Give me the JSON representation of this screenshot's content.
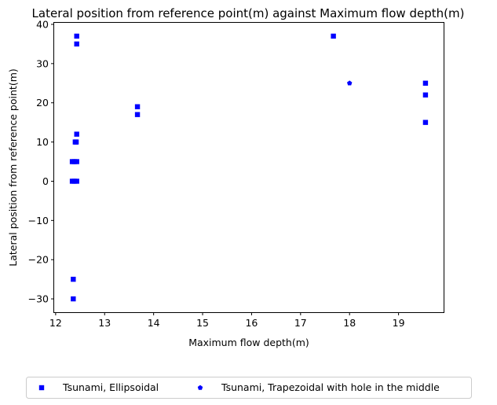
{
  "chart_data": {
    "type": "scatter",
    "title": "Lateral position from reference point(m) against Maximum flow depth(m)",
    "xlabel": "Maximum flow depth(m)",
    "ylabel": "Lateral position from reference point(m)",
    "xlim": [
      11.97,
      19.92
    ],
    "ylim": [
      -33.4,
      40.4
    ],
    "xticks": [
      12,
      13,
      14,
      15,
      16,
      17,
      18,
      19
    ],
    "yticks": [
      -30,
      -20,
      -10,
      0,
      10,
      20,
      30,
      40
    ],
    "xtick_labels": [
      "12",
      "13",
      "14",
      "15",
      "16",
      "17",
      "18",
      "19"
    ],
    "ytick_labels": [
      "−30",
      "−20",
      "−10",
      "0",
      "10",
      "20",
      "30",
      "40"
    ],
    "legend_position": "below",
    "series": [
      {
        "name": "Tsunami, Ellipsoidal",
        "marker": "square",
        "color": "#0000ff",
        "points": [
          [
            12.43,
            37
          ],
          [
            12.43,
            35
          ],
          [
            12.43,
            12
          ],
          [
            12.42,
            10
          ],
          [
            12.4,
            10
          ],
          [
            12.34,
            5
          ],
          [
            12.38,
            5
          ],
          [
            12.43,
            5
          ],
          [
            12.34,
            0
          ],
          [
            12.38,
            0
          ],
          [
            12.43,
            0
          ],
          [
            12.36,
            -25
          ],
          [
            12.36,
            -30
          ],
          [
            13.67,
            19
          ],
          [
            13.67,
            17
          ],
          [
            17.67,
            37
          ],
          [
            19.55,
            25
          ],
          [
            19.55,
            22
          ],
          [
            19.55,
            15
          ]
        ]
      },
      {
        "name": "Tsunami, Trapezoidal with hole in the middle",
        "marker": "pentagon",
        "color": "#0000ff",
        "points": [
          [
            18.0,
            25
          ]
        ]
      }
    ]
  }
}
